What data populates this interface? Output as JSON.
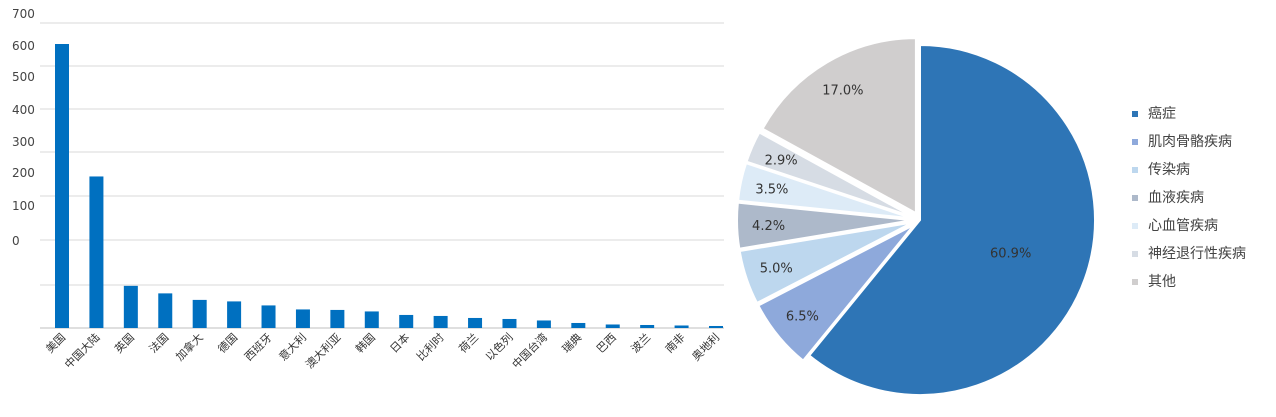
{
  "chart_data": [
    {
      "type": "bar",
      "categories": [
        "美国",
        "中国大陆",
        "英国",
        "法国",
        "加拿大",
        "德国",
        "西班牙",
        "意大利",
        "澳大利亚",
        "韩国",
        "日本",
        "比利时",
        "荷兰",
        "以色列",
        "中国台湾",
        "瑞典",
        "巴西",
        "波兰",
        "南非",
        "奥地利"
      ],
      "values": [
        566,
        302,
        84,
        69,
        56,
        53,
        45,
        37,
        36,
        33,
        26,
        24,
        20,
        18,
        15,
        10,
        7,
        6,
        5,
        4
      ],
      "y_tick_labels": [
        "700",
        "600",
        "500",
        "400",
        "300",
        "200",
        "100",
        "0"
      ],
      "color": "#0070C0",
      "grid": "horizontal"
    },
    {
      "type": "pie",
      "labels": [
        "癌症",
        "肌肉骨骼疾病",
        "传染病",
        "血液疾病",
        "心血管疾病",
        "神经退行性疾病",
        "其他"
      ],
      "values": [
        60.9,
        6.5,
        5.0,
        4.2,
        3.5,
        2.9,
        17.0
      ],
      "value_labels": [
        "60.9%",
        "6.5%",
        "5.0%",
        "4.2%",
        "3.5%",
        "2.9%",
        "17.0%"
      ],
      "colors": [
        "#2E75B6",
        "#8EA9DB",
        "#BDD7EE",
        "#ADB9CA",
        "#DDEBF7",
        "#D6DCE4",
        "#D0CECE"
      ],
      "legend_position": "right"
    }
  ]
}
